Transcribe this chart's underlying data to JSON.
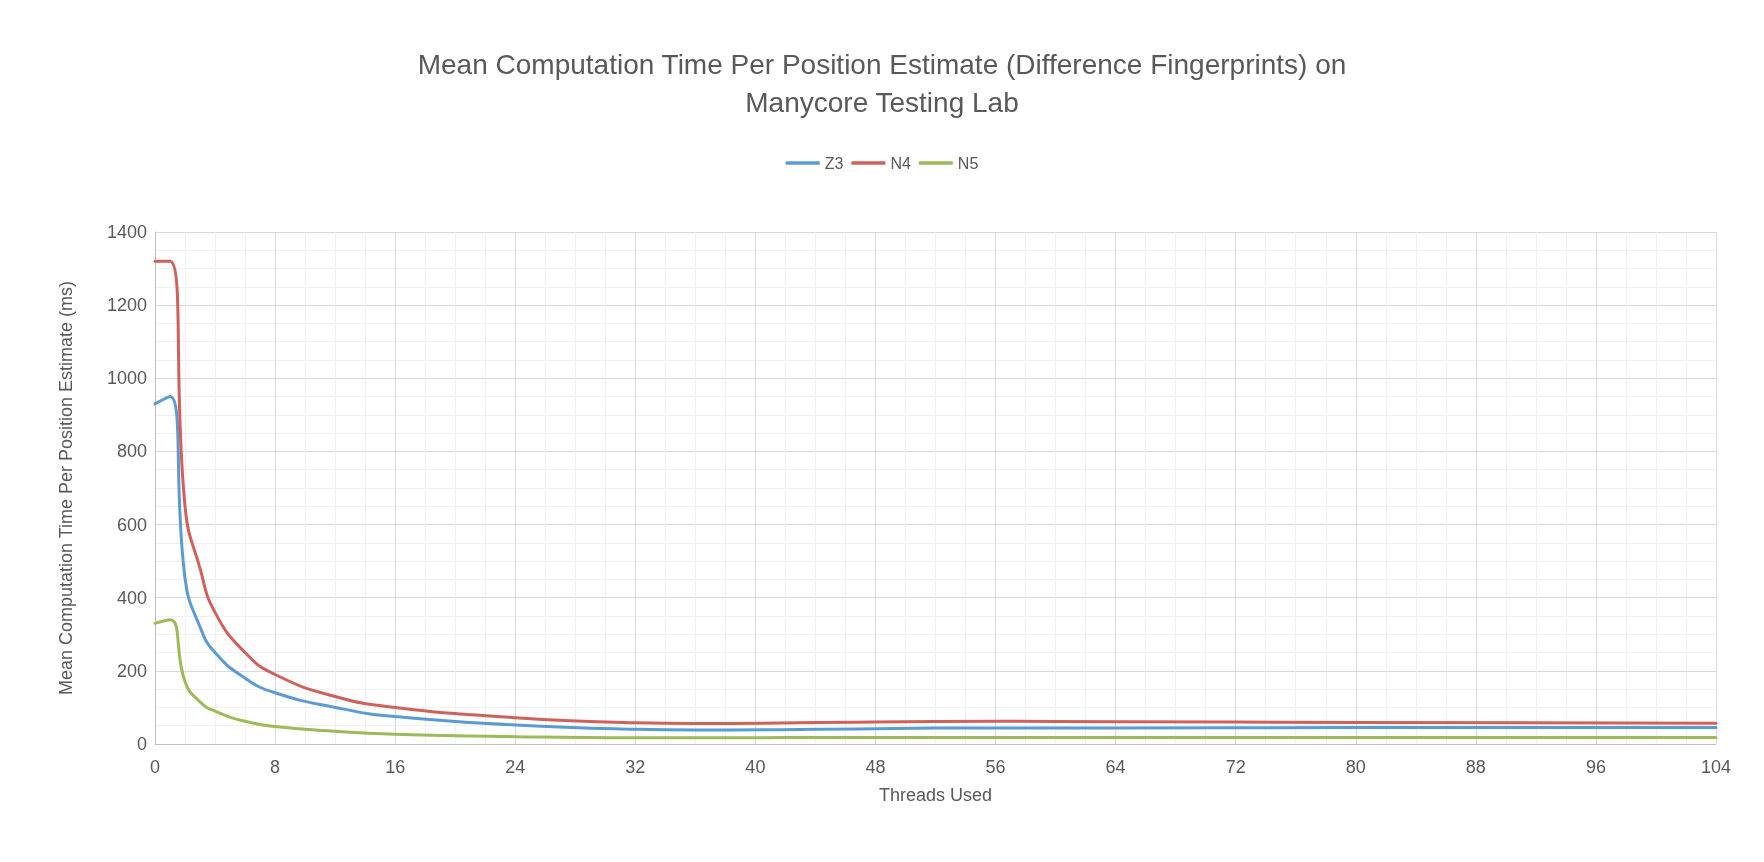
{
  "chart_data": {
    "type": "line",
    "title": "Mean Computation Time Per Position Estimate (Difference Fingerprints) on\nManycore Testing Lab",
    "xlabel": "Threads Used",
    "ylabel": "Mean Computation Time Per Position Estimate (ms)",
    "x": [
      0,
      1,
      2,
      3,
      4,
      6,
      8,
      12,
      16,
      24,
      32,
      36,
      48,
      56,
      64,
      80,
      104
    ],
    "series": [
      {
        "name": "Z3",
        "color": "#5b9bd5",
        "values": [
          930,
          950,
          454,
          320,
          250,
          180,
          140,
          100,
          75,
          52,
          40,
          38,
          42,
          44,
          44,
          45,
          45
        ]
      },
      {
        "name": "N4",
        "color": "#d0605a",
        "values": [
          1320,
          1320,
          650,
          480,
          360,
          250,
          190,
          130,
          100,
          72,
          58,
          56,
          60,
          62,
          61,
          59,
          57
        ]
      },
      {
        "name": "N5",
        "color": "#9bbb59",
        "values": [
          330,
          340,
          170,
          115,
          90,
          62,
          48,
          35,
          27,
          20,
          17,
          17,
          18,
          18,
          18,
          18,
          18
        ]
      }
    ],
    "xlim": [
      0,
      104
    ],
    "xticks": [
      0,
      8,
      16,
      24,
      32,
      40,
      48,
      56,
      64,
      72,
      80,
      88,
      96,
      104
    ],
    "ylim": [
      0,
      1400
    ],
    "yticks": [
      0,
      200,
      400,
      600,
      800,
      1000,
      1200,
      1400
    ],
    "grid": true,
    "legend": "top",
    "marker": "none",
    "line_style": "solid"
  }
}
